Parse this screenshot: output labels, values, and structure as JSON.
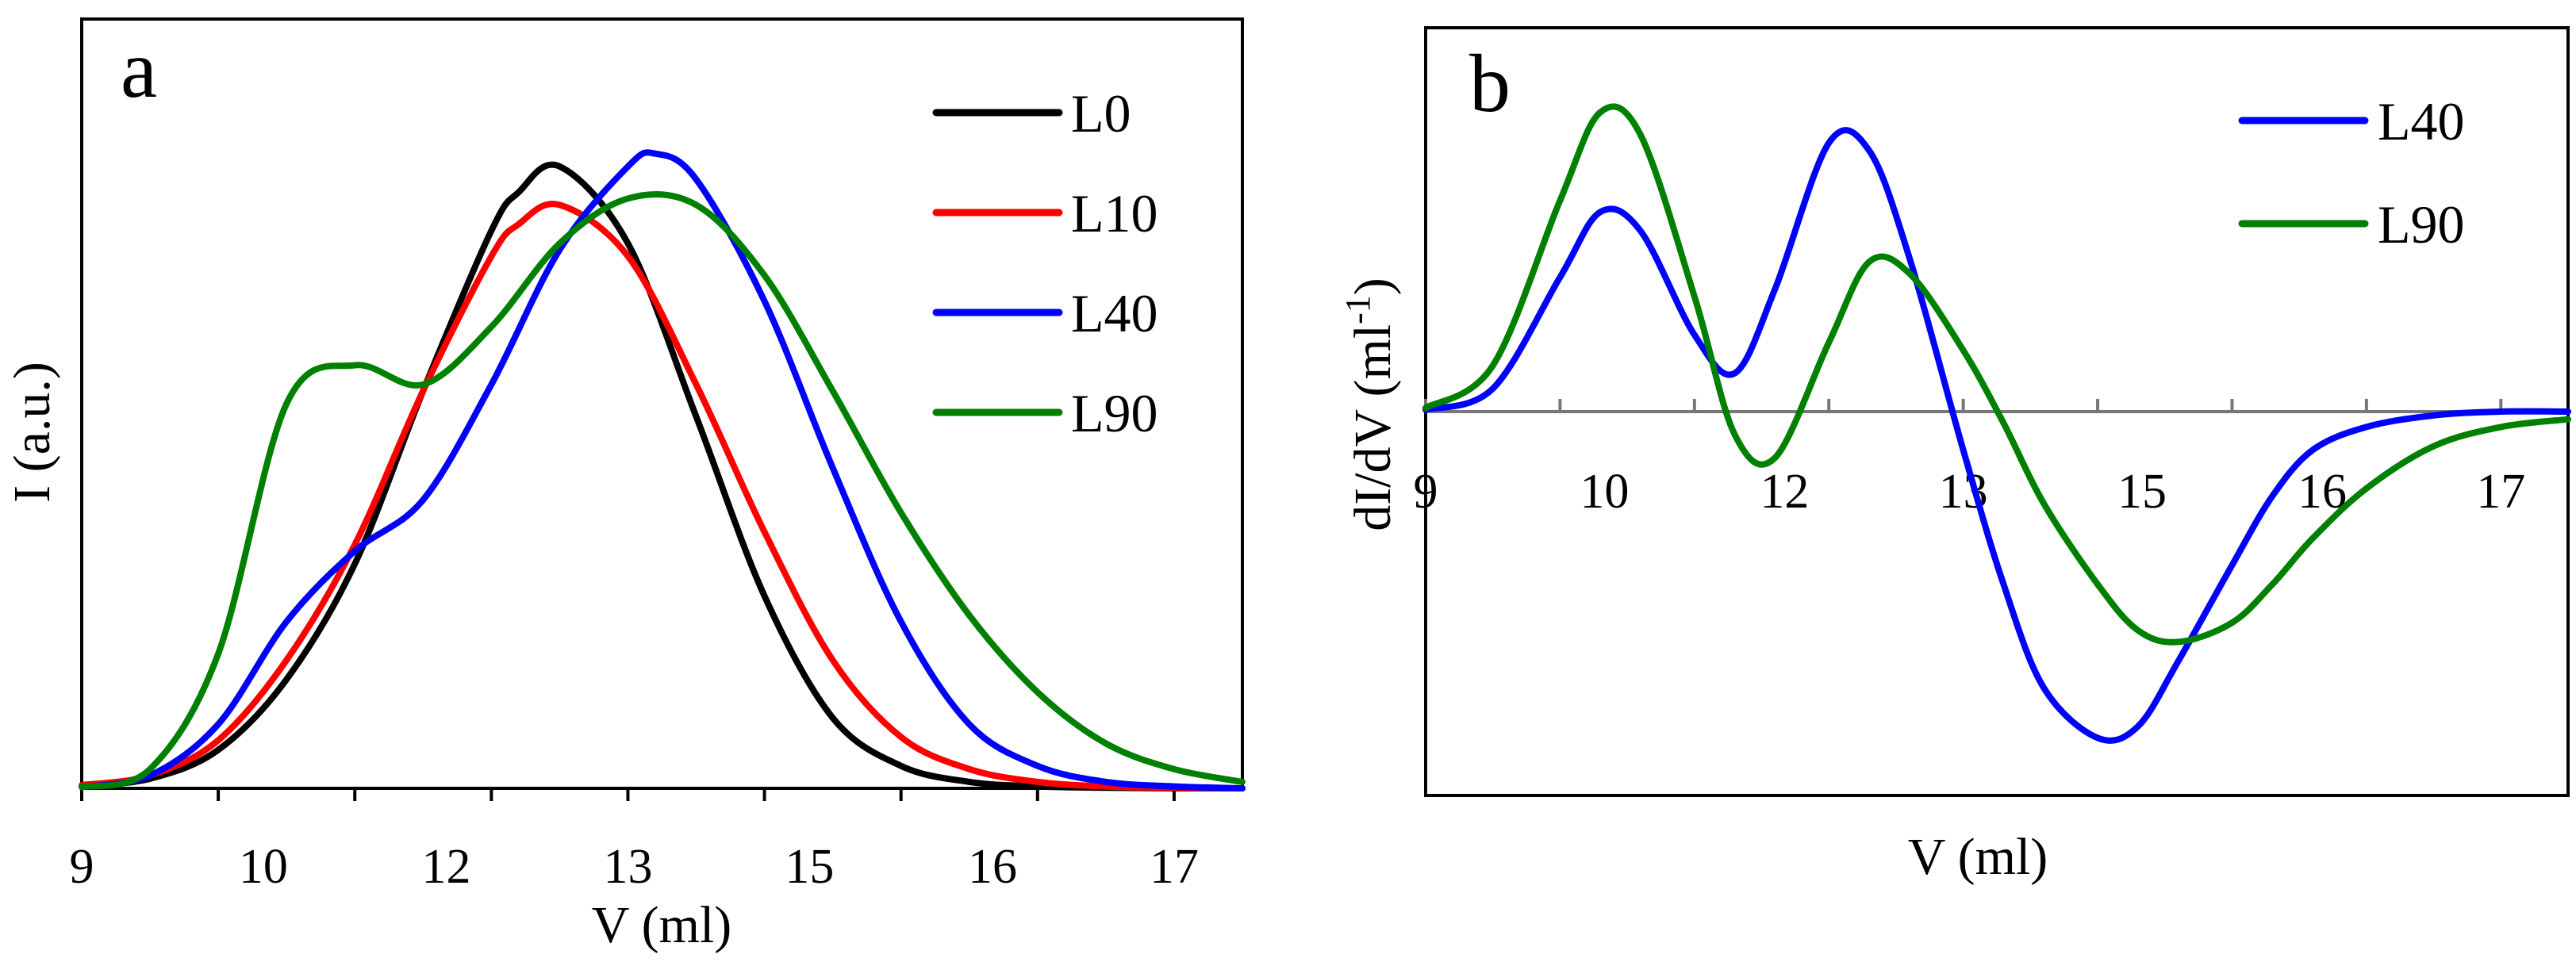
{
  "chart_data": [
    {
      "id": "a",
      "type": "line",
      "panel_label": "a",
      "xlabel": "V (ml)",
      "ylabel": "I (a.u.)",
      "xlim": [
        9,
        17.5
      ],
      "ylim": [
        0,
        1.2
      ],
      "x_ticks": [
        9,
        10,
        11,
        12,
        13,
        14,
        15,
        16,
        17
      ],
      "x_tick_labels": [
        "9",
        "10",
        "12",
        "13",
        "15",
        "16",
        "17"
      ],
      "x_tick_label_at": [
        9,
        10.33,
        11.67,
        13,
        14.33,
        15.67,
        17
      ],
      "legend_position": "top-right",
      "series": [
        {
          "name": "L0",
          "color": "#000000",
          "x": [
            9,
            9.5,
            10,
            10.5,
            11,
            11.5,
            12,
            12.2,
            12.5,
            13,
            13.5,
            14,
            14.5,
            15,
            15.5,
            16,
            16.5,
            17,
            17.5
          ],
          "y": [
            0.004,
            0.015,
            0.06,
            0.17,
            0.35,
            0.62,
            0.87,
            0.93,
            0.97,
            0.85,
            0.58,
            0.3,
            0.11,
            0.035,
            0.01,
            0.003,
            0.001,
            0.0,
            0.0
          ]
        },
        {
          "name": "L10",
          "color": "#ff0000",
          "x": [
            9,
            9.5,
            10,
            10.5,
            11,
            11.5,
            12,
            12.2,
            12.5,
            13,
            13.5,
            14,
            14.5,
            15,
            15.5,
            16,
            16.5,
            17,
            17.5
          ],
          "y": [
            0.005,
            0.02,
            0.075,
            0.2,
            0.38,
            0.62,
            0.83,
            0.88,
            0.91,
            0.83,
            0.63,
            0.4,
            0.2,
            0.08,
            0.03,
            0.01,
            0.003,
            0.001,
            0.0
          ]
        },
        {
          "name": "L40",
          "color": "#0000ff",
          "x": [
            9,
            9.5,
            10,
            10.5,
            11,
            11.5,
            12,
            12.5,
            13,
            13.2,
            13.5,
            14,
            14.5,
            15,
            15.5,
            16,
            16.5,
            17,
            17.5
          ],
          "y": [
            0.002,
            0.02,
            0.1,
            0.26,
            0.37,
            0.45,
            0.63,
            0.84,
            0.97,
            0.99,
            0.95,
            0.76,
            0.5,
            0.26,
            0.1,
            0.035,
            0.01,
            0.003,
            0.0
          ]
        },
        {
          "name": "L90",
          "color": "#008000",
          "x": [
            9,
            9.5,
            10,
            10.5,
            11,
            11.5,
            12,
            12.5,
            13,
            13.5,
            14,
            14.5,
            15,
            15.5,
            16,
            16.5,
            17,
            17.5
          ],
          "y": [
            0.002,
            0.03,
            0.21,
            0.6,
            0.66,
            0.63,
            0.72,
            0.85,
            0.92,
            0.91,
            0.8,
            0.62,
            0.43,
            0.27,
            0.15,
            0.07,
            0.03,
            0.01
          ]
        }
      ]
    },
    {
      "id": "b",
      "type": "line",
      "panel_label": "b",
      "xlabel": "V (ml)",
      "ylabel": "dI/dV (ml",
      "ylabel_sup": "-1",
      "ylabel_close": ")",
      "xlim": [
        9,
        17.5
      ],
      "ylim": [
        -1.0,
        1.0
      ],
      "x_ticks": [
        9,
        10,
        11,
        12,
        13,
        14,
        15,
        16,
        17
      ],
      "x_tick_labels": [
        "9",
        "10",
        "12",
        "13",
        "15",
        "16",
        "17"
      ],
      "x_tick_label_at": [
        9,
        10.33,
        11.67,
        13,
        14.33,
        15.67,
        17
      ],
      "legend_position": "top-right",
      "series": [
        {
          "name": "L40",
          "color": "#0000ff",
          "x": [
            9,
            9.5,
            10,
            10.3,
            10.6,
            11,
            11.3,
            11.6,
            12,
            12.3,
            12.6,
            13,
            13.3,
            13.6,
            14,
            14.3,
            14.6,
            15,
            15.3,
            15.6,
            16,
            16.5,
            17,
            17.5
          ],
          "y": [
            0.005,
            0.06,
            0.35,
            0.52,
            0.47,
            0.2,
            0.1,
            0.32,
            0.7,
            0.68,
            0.4,
            -0.1,
            -0.45,
            -0.72,
            -0.85,
            -0.82,
            -0.65,
            -0.4,
            -0.22,
            -0.1,
            -0.04,
            -0.01,
            0.0,
            0.0
          ]
        },
        {
          "name": "L90",
          "color": "#008000",
          "x": [
            9,
            9.5,
            10,
            10.3,
            10.6,
            11,
            11.3,
            11.6,
            12,
            12.3,
            12.6,
            13,
            13.3,
            13.6,
            14,
            14.3,
            14.6,
            15,
            15.3,
            15.6,
            16,
            16.5,
            17,
            17.5
          ],
          "y": [
            0.01,
            0.12,
            0.55,
            0.78,
            0.72,
            0.3,
            -0.06,
            -0.12,
            0.18,
            0.39,
            0.36,
            0.16,
            -0.03,
            -0.24,
            -0.45,
            -0.57,
            -0.6,
            -0.55,
            -0.45,
            -0.33,
            -0.2,
            -0.09,
            -0.04,
            -0.02
          ]
        }
      ]
    }
  ]
}
